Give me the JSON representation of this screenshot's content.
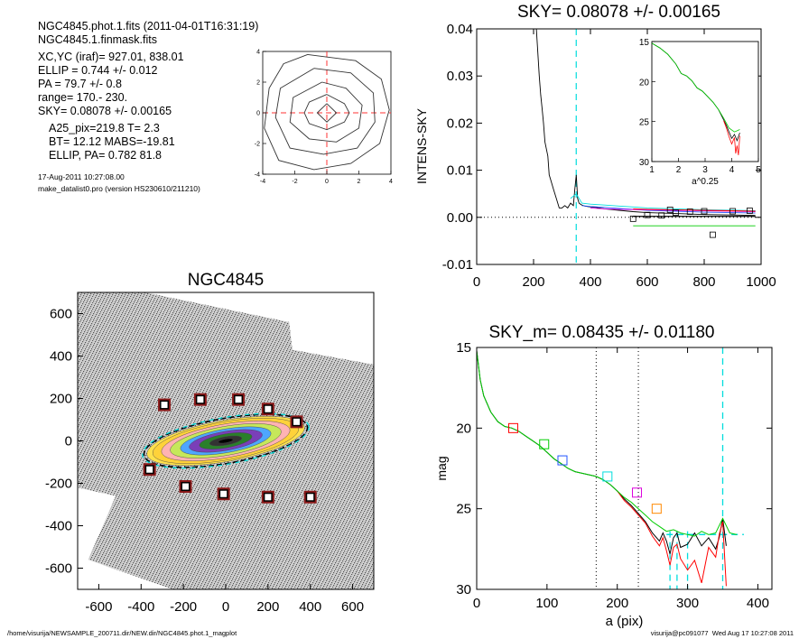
{
  "info": {
    "line1": "NGC4845.phot.1.fits  (2011-04-01T16:31:19)",
    "line2": "NGC4845.1.finmask.fits",
    "line3": "XC,YC (iraf)=   927.01, 838.01",
    "line4": "ELLIP = 0.744 +/- 0.012",
    "line5": "PA    =  79.7 +/-   0.8",
    "line6": "range=  170.-  230.",
    "line7": "SKY= 0.08078 +/- 0.00165",
    "line8": "A25_pix=219.8   T= 2.3",
    "line9": "BT=  12.12   MABS=-19.81",
    "line10": "ELLIP, PA= 0.782   81.8",
    "date": "17-Aug-2011 10:27:08.00",
    "program": "make_datalist0.pro (version HS230610/211210)"
  },
  "footer": {
    "left": "/home/visurija/NEWSAMPLE_200711.dir/NEW.dir/NGC4845.phot.1_magplot",
    "right": "visurija@pc091077  Wed Aug 17 10:27:08 2011"
  },
  "colors": {
    "red": "#ff0000",
    "green": "#00cc00",
    "blue": "#2255ff",
    "cyan": "#00dddd",
    "magenta": "#dd00dd",
    "orange": "#ff8800",
    "brown": "#8b1a1a"
  },
  "chart_data": [
    {
      "id": "contour",
      "type": "contour",
      "title": "",
      "xlim": [
        -4,
        4
      ],
      "ylim": [
        -4,
        4
      ],
      "xticks": [
        "-4",
        "-2",
        "0",
        "2",
        "4"
      ],
      "yticks": [
        "-4",
        "-2",
        "0",
        "2",
        "4"
      ],
      "contours": [
        [
          [
            0,
            0.6
          ],
          [
            0.6,
            0
          ],
          [
            0,
            -0.6
          ],
          [
            -0.6,
            0
          ]
        ],
        [
          [
            0,
            1.2
          ],
          [
            1.1,
            0.6
          ],
          [
            1.4,
            0
          ],
          [
            1.1,
            -0.6
          ],
          [
            0,
            -1.1
          ],
          [
            -1.1,
            -0.7
          ],
          [
            -1.4,
            0
          ],
          [
            -1.1,
            0.7
          ]
        ],
        [
          [
            -0.3,
            2.0
          ],
          [
            1.2,
            1.6
          ],
          [
            2.2,
            0.5
          ],
          [
            2.0,
            -1.0
          ],
          [
            0.6,
            -1.9
          ],
          [
            -1.1,
            -1.7
          ],
          [
            -2.3,
            -0.6
          ],
          [
            -2.1,
            1.0
          ]
        ],
        [
          [
            -0.8,
            2.9
          ],
          [
            1.5,
            2.6
          ],
          [
            2.9,
            1.3
          ],
          [
            3.0,
            -0.6
          ],
          [
            1.9,
            -2.3
          ],
          [
            -0.2,
            -2.7
          ],
          [
            -2.3,
            -2.3
          ],
          [
            -3.2,
            -0.3
          ],
          [
            -2.9,
            1.6
          ]
        ],
        [
          [
            -1.2,
            3.8
          ],
          [
            1.8,
            3.4
          ],
          [
            3.4,
            2.2
          ],
          [
            3.9,
            0.2
          ],
          [
            3.3,
            -2.0
          ],
          [
            1.5,
            -3.3
          ],
          [
            -0.8,
            -3.7
          ],
          [
            -3.0,
            -3.1
          ],
          [
            -3.9,
            -1.0
          ],
          [
            -3.6,
            1.6
          ],
          [
            -2.7,
            3.2
          ]
        ]
      ]
    },
    {
      "id": "sky",
      "type": "line",
      "title": "SKY= 0.08078 +/- 0.00165",
      "xlabel": "",
      "ylabel": "INTENS-SKY",
      "xlim": [
        0,
        1000
      ],
      "ylim": [
        -0.01,
        0.04
      ],
      "xticks": [
        0,
        200,
        400,
        600,
        800,
        1000
      ],
      "yticks": [
        -0.01,
        0.0,
        0.01,
        0.02,
        0.03,
        0.04
      ],
      "ytick_labels": [
        "-0.01",
        "0.00",
        "0.01",
        "0.02",
        "0.03",
        "0.04"
      ],
      "sky_marker_x": 350,
      "series": [
        {
          "color": "black",
          "x": [
            210,
            215,
            220,
            225,
            230,
            235,
            240,
            250,
            255,
            260,
            270,
            280,
            290,
            300,
            310,
            320,
            330,
            340,
            345,
            350,
            355,
            360,
            365,
            370,
            380,
            400,
            420,
            450,
            500,
            550,
            600,
            650,
            700,
            800,
            900,
            980
          ],
          "y": [
            0.04,
            0.035,
            0.03,
            0.026,
            0.023,
            0.02,
            0.016,
            0.013,
            0.009,
            0.008,
            0.006,
            0.004,
            0.002,
            0.002,
            0.0025,
            0.002,
            0.003,
            0.0025,
            0.006,
            0.009,
            0.004,
            0.003,
            0.0028,
            0.0026,
            0.0024,
            0.0022,
            0.0021,
            0.0018,
            0.0015,
            0.0012,
            0.001,
            0.0009,
            0.0008,
            0.0006,
            0.0005,
            0.0004
          ]
        },
        {
          "color": "cyan",
          "x": [
            330,
            350,
            370,
            400,
            450,
            500,
            550,
            600,
            700,
            800,
            900,
            980
          ],
          "y": [
            0.004,
            0.005,
            0.003,
            0.0028,
            0.0026,
            0.0024,
            0.0022,
            0.002,
            0.0018,
            0.0016,
            0.0015,
            0.0014
          ]
        },
        {
          "color": "blue",
          "x": [
            370,
            400,
            450,
            500,
            550,
            600,
            700,
            800,
            900,
            980
          ],
          "y": [
            0.0025,
            0.0023,
            0.0021,
            0.0019,
            0.0017,
            0.0015,
            0.0013,
            0.0011,
            0.001,
            0.0009
          ]
        },
        {
          "color": "magenta",
          "x": [
            400,
            450,
            500,
            600,
            700,
            800,
            900,
            980
          ],
          "y": [
            0.002,
            0.0018,
            0.0017,
            0.0016,
            0.0015,
            0.0014,
            0.0013,
            0.0012
          ]
        },
        {
          "color": "red",
          "x": [
            550,
            600,
            700,
            800,
            900,
            980
          ],
          "y": [
            0.0018,
            0.0017,
            0.0016,
            0.0015,
            0.0014,
            0.0013
          ]
        },
        {
          "color": "green",
          "x": [
            550,
            600,
            700,
            800,
            900,
            980
          ],
          "y": [
            -0.0018,
            -0.0018,
            -0.0018,
            -0.0018,
            -0.0018,
            -0.0018
          ]
        }
      ],
      "points": {
        "x": [
          550,
          600,
          650,
          680,
          700,
          750,
          800,
          830,
          900,
          960
        ],
        "y": [
          -0.0003,
          0.0005,
          0.0004,
          0.0016,
          0.001,
          0.0012,
          0.0013,
          -0.0037,
          0.0013,
          0.0014
        ]
      },
      "inset": {
        "xlabel": "a^0.25",
        "xlim": [
          1,
          5
        ],
        "ylim": [
          15,
          30
        ],
        "xticks": [
          1,
          2,
          3,
          4,
          5
        ],
        "yticks": [
          15,
          20,
          25,
          30
        ],
        "series": [
          {
            "color": "black",
            "x": [
              1.0,
              1.3,
              1.6,
              1.9,
              2.1,
              2.3,
              2.5,
              2.7,
              2.9,
              3.1,
              3.3,
              3.5,
              3.7,
              3.8,
              3.9,
              4.0,
              4.1,
              4.2,
              4.3
            ],
            "y": [
              15.2,
              15.8,
              16.6,
              17.8,
              19.0,
              19.3,
              19.9,
              20.8,
              21.2,
              21.9,
              22.6,
              23.5,
              24.8,
              25.5,
              26.3,
              27.1,
              26.6,
              27.4,
              26.4
            ]
          },
          {
            "color": "red",
            "x": [
              3.7,
              3.8,
              3.9,
              4.0,
              4.1,
              4.15,
              4.2,
              4.25,
              4.3
            ],
            "y": [
              24.9,
              25.8,
              26.9,
              27.8,
              27.0,
              29.0,
              28.0,
              29.2,
              26.8
            ]
          },
          {
            "color": "green",
            "x": [
              1.0,
              1.3,
              1.6,
              1.9,
              2.1,
              2.3,
              2.5,
              2.7,
              2.9,
              3.1,
              3.3,
              3.5,
              3.7,
              3.9,
              4.1,
              4.3
            ],
            "y": [
              15.2,
              15.8,
              16.6,
              17.8,
              19.0,
              19.3,
              19.9,
              20.8,
              21.2,
              21.9,
              22.6,
              23.5,
              24.6,
              25.8,
              26.3,
              26.0
            ]
          }
        ]
      }
    },
    {
      "id": "image",
      "type": "image",
      "title": "NGC4845",
      "xlim": [
        -700,
        700
      ],
      "ylim": [
        -700,
        700
      ],
      "xticks": [
        -600,
        -400,
        -200,
        0,
        200,
        400,
        600
      ],
      "yticks": [
        -600,
        -400,
        -200,
        0,
        200,
        400,
        600
      ],
      "boxes": [
        [
          -290,
          170
        ],
        [
          -120,
          195
        ],
        [
          60,
          195
        ],
        [
          200,
          150
        ],
        [
          335,
          90
        ],
        [
          -360,
          -135
        ],
        [
          -190,
          -215
        ],
        [
          -10,
          -250
        ],
        [
          200,
          -265
        ],
        [
          400,
          -265
        ]
      ],
      "ellipse": {
        "x": 0,
        "y": 0,
        "a": 350,
        "b": 90,
        "pa_deg": 10
      }
    },
    {
      "id": "mag",
      "type": "line",
      "title": "SKY_m=  0.08435 +/- 0.01180",
      "xlabel": "a (pix)",
      "ylabel": "mag",
      "xlim": [
        0,
        420
      ],
      "ylim": [
        15,
        30
      ],
      "xticks": [
        0,
        100,
        200,
        300,
        400
      ],
      "yticks": [
        15,
        20,
        25,
        30
      ],
      "vlines_dotted": [
        170,
        230
      ],
      "vlines_dashed": [
        275,
        285,
        300,
        350
      ],
      "hline_dashed": {
        "y": 26.6,
        "x0": 270,
        "x1": 380
      },
      "series": [
        {
          "color": "black",
          "x": [
            0,
            5,
            10,
            20,
            30,
            40,
            50,
            60,
            70,
            80,
            90,
            100,
            110,
            120,
            130,
            140,
            150,
            160,
            170,
            180,
            190,
            200,
            210,
            220,
            230,
            240,
            250,
            260,
            265,
            270,
            275,
            280,
            285,
            290,
            300,
            310,
            320,
            330,
            340,
            345,
            350,
            355
          ],
          "y": [
            15.2,
            17.0,
            18.0,
            19.0,
            19.6,
            19.9,
            20.0,
            20.2,
            20.5,
            20.8,
            21.1,
            21.5,
            21.9,
            22.2,
            22.5,
            22.7,
            22.8,
            22.9,
            23.0,
            23.2,
            23.5,
            23.9,
            24.4,
            24.8,
            25.3,
            25.8,
            26.5,
            27.0,
            26.5,
            27.0,
            27.8,
            26.8,
            26.5,
            27.4,
            27.2,
            26.5,
            27.3,
            26.8,
            27.5,
            26.8,
            25.6,
            27.3
          ]
        },
        {
          "color": "red",
          "x": [
            200,
            210,
            220,
            230,
            240,
            250,
            260,
            265,
            270,
            275,
            280,
            285,
            290,
            300,
            310,
            320,
            330,
            340,
            345,
            350,
            355
          ],
          "y": [
            23.9,
            24.5,
            24.9,
            25.4,
            25.9,
            26.7,
            27.3,
            26.8,
            27.6,
            28.5,
            27.4,
            27.2,
            28.1,
            28.8,
            28.2,
            29.6,
            27.4,
            28.0,
            26.6,
            25.8,
            29.8
          ]
        },
        {
          "color": "green",
          "x": [
            0,
            5,
            10,
            20,
            30,
            40,
            50,
            60,
            70,
            80,
            90,
            100,
            110,
            120,
            130,
            140,
            150,
            160,
            170,
            180,
            190,
            200,
            210,
            220,
            230,
            240,
            250,
            260,
            270,
            280,
            290,
            300,
            310,
            320,
            330,
            340,
            350,
            360,
            370
          ],
          "y": [
            15.2,
            17.0,
            18.0,
            19.0,
            19.6,
            19.9,
            20.0,
            20.2,
            20.5,
            20.8,
            21.1,
            21.5,
            21.9,
            22.2,
            22.5,
            22.7,
            22.8,
            22.9,
            23.0,
            23.2,
            23.5,
            23.9,
            24.3,
            24.6,
            25.0,
            25.4,
            25.8,
            26.1,
            26.4,
            26.3,
            26.5,
            26.6,
            26.7,
            26.4,
            26.6,
            26.5,
            25.6,
            26.5,
            26.6
          ]
        }
      ],
      "squares": [
        {
          "x": 52,
          "y": 20.0,
          "color": "red"
        },
        {
          "x": 96,
          "y": 21.0,
          "color": "green"
        },
        {
          "x": 122,
          "y": 22.0,
          "color": "blue"
        },
        {
          "x": 186,
          "y": 23.0,
          "color": "cyan"
        },
        {
          "x": 228,
          "y": 24.0,
          "color": "magenta"
        },
        {
          "x": 256,
          "y": 25.0,
          "color": "orange"
        }
      ]
    }
  ]
}
